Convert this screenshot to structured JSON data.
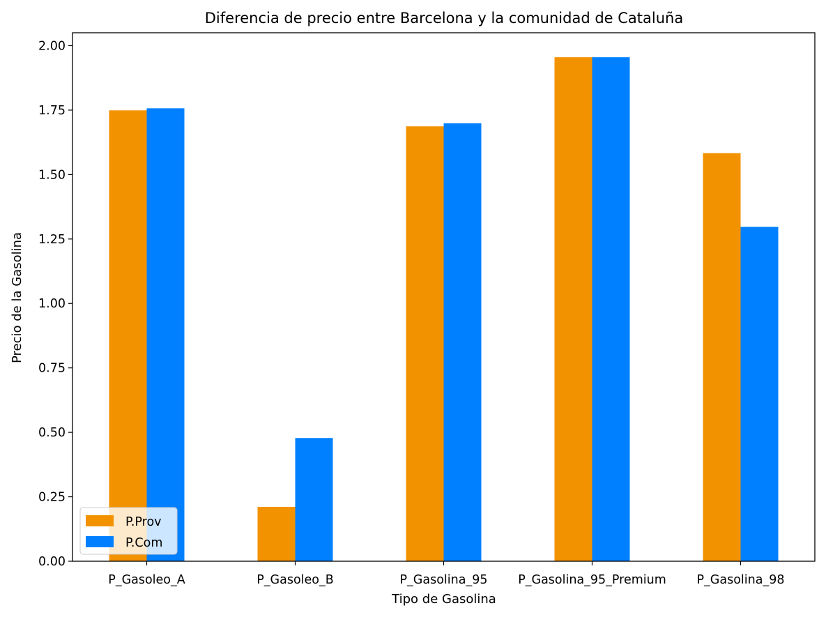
{
  "chart_data": {
    "type": "bar",
    "title": "Diferencia de precio entre Barcelona y la comunidad de Cataluña",
    "xlabel": "Tipo de Gasolina",
    "ylabel": "Precio de la Gasolina",
    "categories": [
      "P_Gasoleo_A",
      "P_Gasoleo_B",
      "P_Gasolina_95",
      "P_Gasolina_95_Premium",
      "P_Gasolina_98"
    ],
    "series": [
      {
        "name": "P.Prov",
        "color": "#f39200",
        "values": [
          1.749,
          0.211,
          1.687,
          1.955,
          1.583
        ]
      },
      {
        "name": "P.Com",
        "color": "#0080ff",
        "values": [
          1.757,
          0.478,
          1.699,
          1.955,
          1.297
        ]
      }
    ],
    "ylim": [
      0,
      2.05
    ],
    "yticks": [
      0.0,
      0.25,
      0.5,
      0.75,
      1.0,
      1.25,
      1.5,
      1.75,
      2.0
    ],
    "ytick_labels": [
      "0.00",
      "0.25",
      "0.50",
      "0.75",
      "1.00",
      "1.25",
      "1.50",
      "1.75",
      "2.00"
    ],
    "grid": false,
    "legend": {
      "position": "lower-left",
      "entries": [
        "P.Prov",
        "P.Com"
      ]
    }
  }
}
